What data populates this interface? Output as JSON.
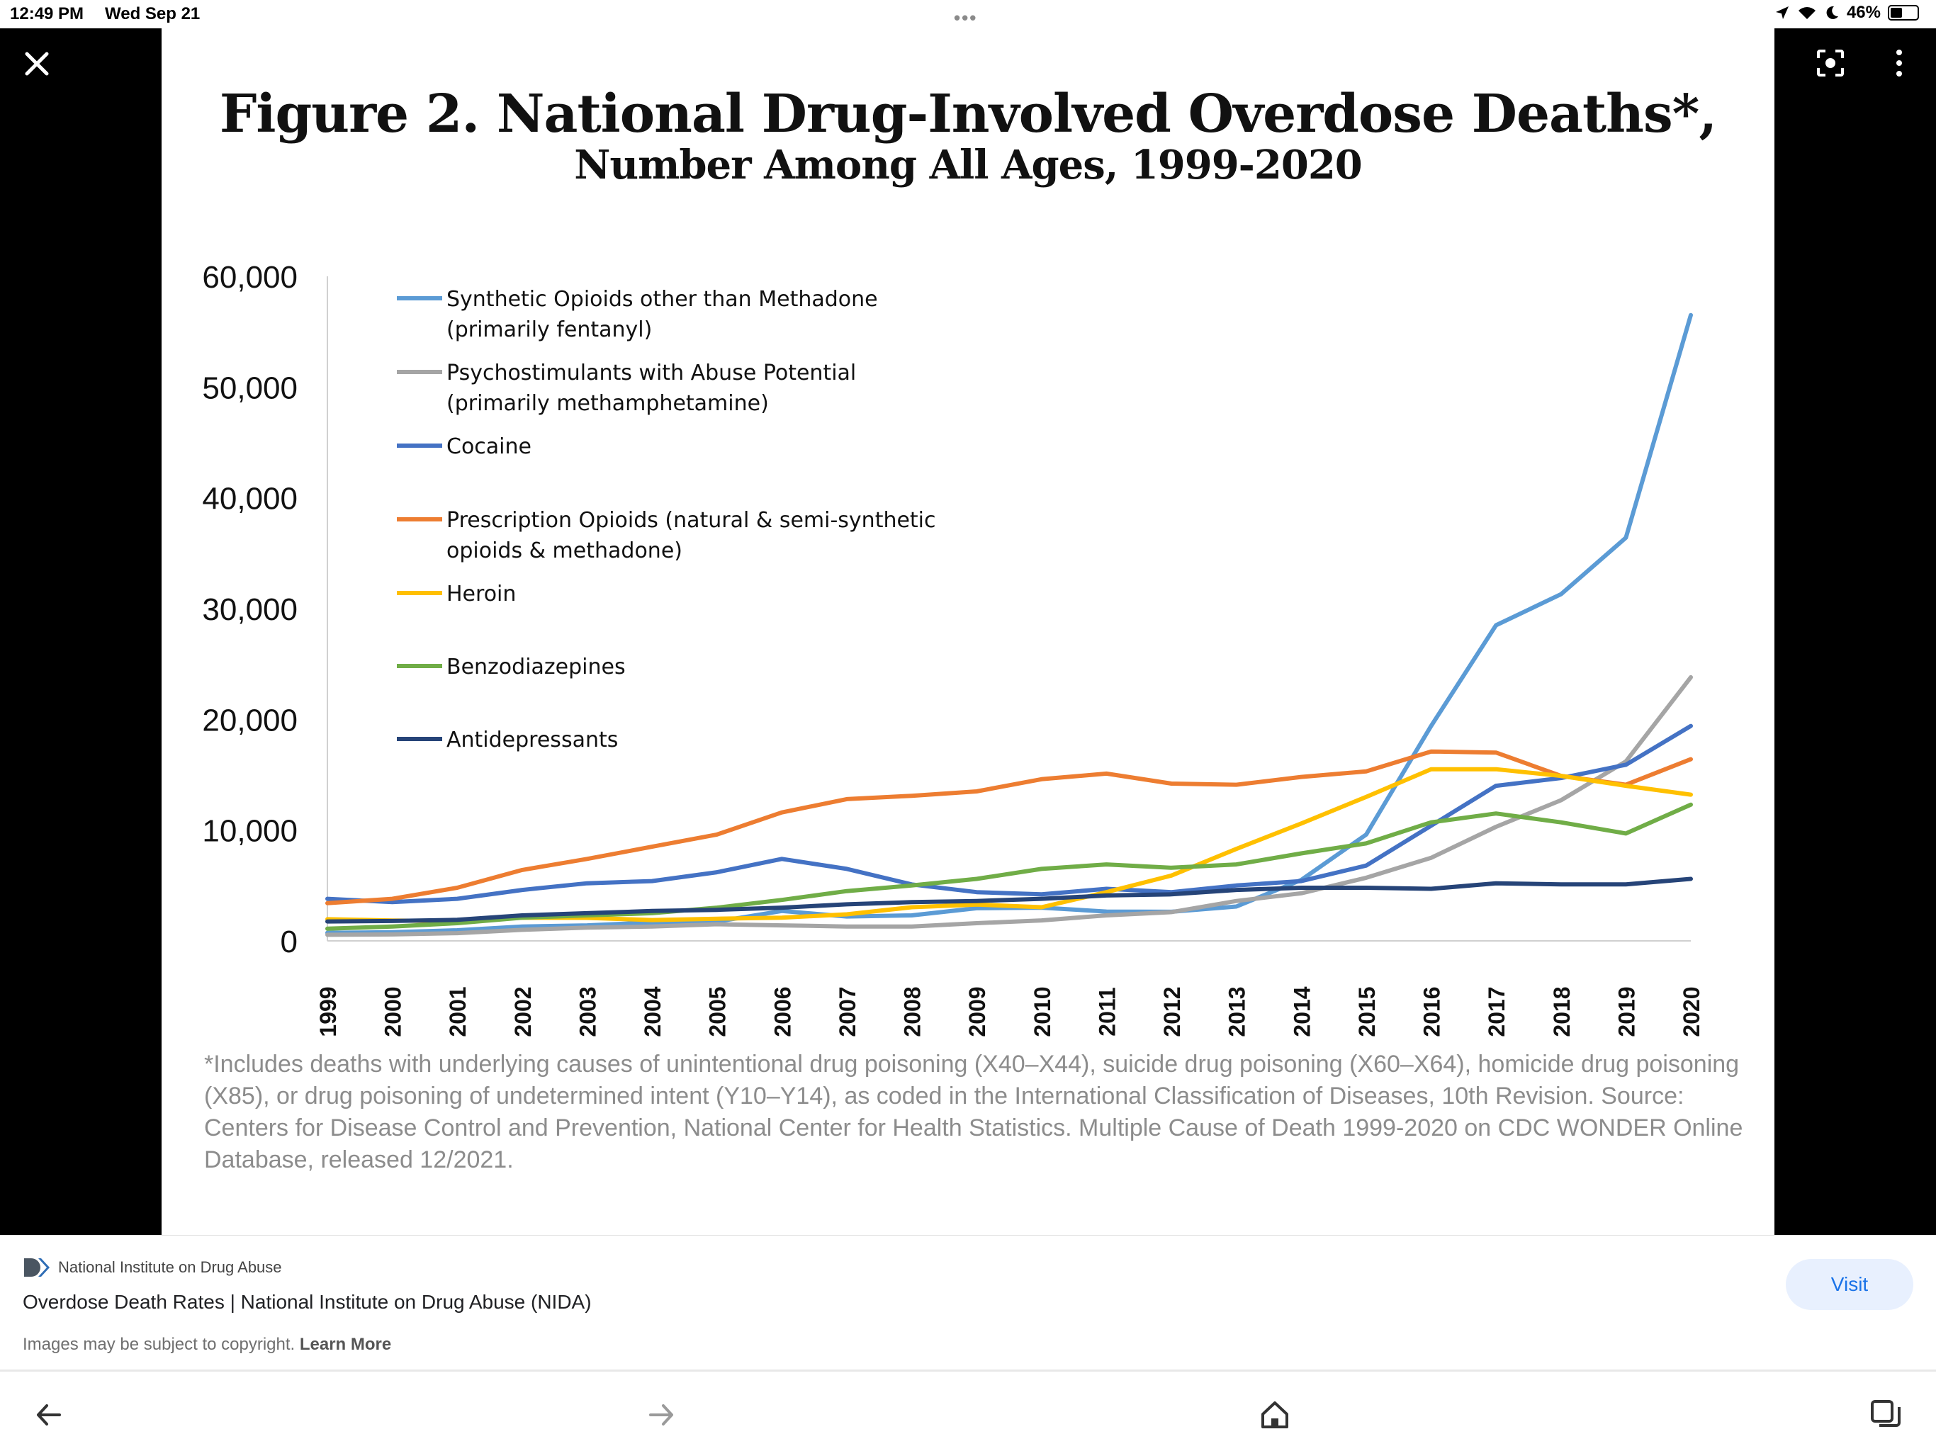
{
  "status_bar": {
    "time": "12:49 PM",
    "date": "Wed Sep 21",
    "battery": "46%"
  },
  "viewer": {
    "close_icon": "close-icon",
    "lens_icon": "lens-icon",
    "more_icon": "more-vert-icon",
    "image": {
      "title": "Figure 2. National Drug-Involved Overdose Deaths*,",
      "subtitle": "Number Among All Ages, 1999-2020",
      "footnote": "*Includes deaths with underlying causes of unintentional drug poisoning (X40–X44), suicide drug poisoning (X60–X64), homicide drug poisoning (X85), or drug poisoning of undetermined intent (Y10–Y14), as coded in the International Classification of Diseases, 10th Revision. Source: Centers for Disease Control and Prevention, National Center for Health Statistics. Multiple Cause of Death 1999-2020 on CDC WONDER Online Database, released 12/2021."
    }
  },
  "chart_data": {
    "type": "line",
    "title": "Figure 2. National Drug-Involved Overdose Deaths*,",
    "subtitle": "Number Among All Ages, 1999-2020",
    "xlabel": "",
    "ylabel": "",
    "ylim": [
      0,
      60000
    ],
    "yticks": [
      "0",
      "10,000",
      "20,000",
      "30,000",
      "40,000",
      "50,000",
      "60,000"
    ],
    "grid": false,
    "legend_position": "top-left",
    "x": [
      "1999",
      "2000",
      "2001",
      "2002",
      "2003",
      "2004",
      "2005",
      "2006",
      "2007",
      "2008",
      "2009",
      "2010",
      "2011",
      "2012",
      "2013",
      "2014",
      "2015",
      "2016",
      "2017",
      "2018",
      "2019",
      "2020"
    ],
    "series": [
      {
        "name_lines": [
          "Synthetic Opioids other than Methadone",
          "(primarily fentanyl)"
        ],
        "color": "#5b9bd5",
        "values": [
          730,
          780,
          960,
          1300,
          1400,
          1660,
          1740,
          2700,
          2200,
          2300,
          2950,
          3000,
          2650,
          2630,
          3100,
          5500,
          9600,
          19400,
          28500,
          31300,
          36400,
          56500
        ]
      },
      {
        "name_lines": [
          "Psychostimulants with Abuse Potential",
          "(primarily methamphetamine)"
        ],
        "color": "#a5a5a5",
        "values": [
          550,
          580,
          700,
          1000,
          1200,
          1300,
          1500,
          1400,
          1300,
          1300,
          1600,
          1850,
          2300,
          2600,
          3600,
          4300,
          5700,
          7500,
          10300,
          12700,
          16200,
          23800
        ]
      },
      {
        "name_lines": [
          "Cocaine"
        ],
        "color": "#4472c4",
        "values": [
          3800,
          3500,
          3800,
          4600,
          5200,
          5400,
          6200,
          7400,
          6500,
          5100,
          4400,
          4200,
          4700,
          4400,
          5000,
          5400,
          6800,
          10400,
          14000,
          14700,
          15900,
          19400
        ]
      },
      {
        "name_lines": [
          "Prescription Opioids (natural & semi-synthetic",
          "opioids & methadone)"
        ],
        "color": "#ed7d31",
        "values": [
          3400,
          3800,
          4800,
          6400,
          7400,
          8500,
          9600,
          11600,
          12800,
          13100,
          13500,
          14600,
          15100,
          14200,
          14100,
          14800,
          15300,
          17100,
          17000,
          14900,
          14100,
          16400
        ]
      },
      {
        "name_lines": [
          "Heroin"
        ],
        "color": "#ffc000",
        "values": [
          1960,
          1840,
          1780,
          2090,
          2080,
          1880,
          2000,
          2090,
          2400,
          3040,
          3280,
          3040,
          4400,
          5900,
          8300,
          10600,
          13000,
          15500,
          15500,
          14900,
          14000,
          13200
        ]
      },
      {
        "name_lines": [
          "Benzodiazepines"
        ],
        "color": "#70ad47",
        "values": [
          1100,
          1300,
          1600,
          2100,
          2300,
          2500,
          3000,
          3700,
          4500,
          5000,
          5600,
          6500,
          6900,
          6600,
          6900,
          7900,
          8800,
          10700,
          11500,
          10700,
          9700,
          12300
        ]
      },
      {
        "name_lines": [
          "Antidepressants"
        ],
        "color": "#264478",
        "values": [
          1750,
          1800,
          1900,
          2300,
          2500,
          2700,
          2800,
          3000,
          3300,
          3500,
          3600,
          3800,
          4100,
          4200,
          4600,
          4800,
          4800,
          4700,
          5200,
          5100,
          5100,
          5600
        ]
      }
    ]
  },
  "result": {
    "source_name": "National Institute on Drug Abuse",
    "title": "Overdose Death Rates | National Institute on Drug Abuse (NIDA)",
    "copyright": "Images may be subject to copyright.",
    "learn_more": "Learn More",
    "visit_label": "Visit"
  },
  "bottom_bar": {
    "back_icon": "back-arrow-icon",
    "forward_icon": "forward-arrow-icon",
    "home_icon": "home-icon",
    "tabs_icon": "tabs-icon"
  }
}
